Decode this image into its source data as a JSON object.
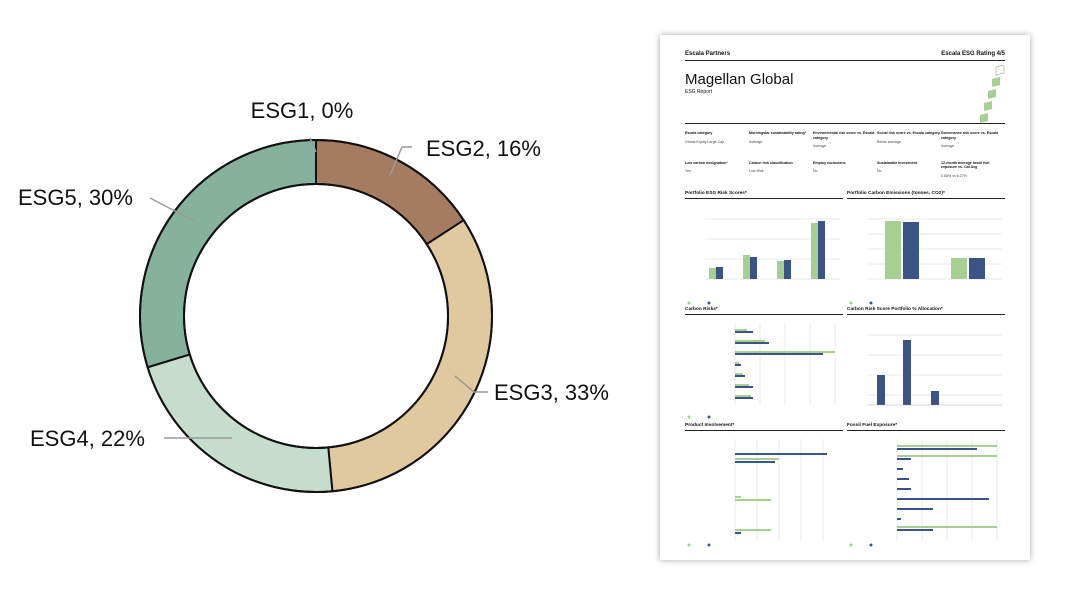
{
  "chart_data": {
    "type": "pie",
    "categories": [
      "ESG1",
      "ESG2",
      "ESG3",
      "ESG4",
      "ESG5"
    ],
    "values": [
      0,
      16,
      33,
      22,
      30
    ],
    "data_labels": [
      "ESG1, 0%",
      "ESG2, 16%",
      "ESG3, 33%",
      "ESG4, 22%",
      "ESG5, 30%"
    ],
    "colors": [
      "#6e6e6e",
      "#a57c60",
      "#e0c99e",
      "#c5ddcc",
      "#86b19c"
    ],
    "donut": true,
    "legend": "none"
  },
  "report": {
    "brand": "Escala Partners",
    "rating": "Escala ESG Rating 4/5",
    "title": "Magellan Global",
    "subtitle": "ESG Report",
    "info": [
      {
        "k": "Escala category",
        "v": "Global Equity Large Cap"
      },
      {
        "k": "Morningstar sustainability rating*",
        "v": "Average"
      },
      {
        "k": "Environmental risk score vs. Escala category",
        "v": "Average"
      },
      {
        "k": "Social risk score vs. Escala category",
        "v": "Below average"
      },
      {
        "k": "Governance risk score vs. Escala category",
        "v": "Average"
      },
      {
        "k": "Low carbon designation*",
        "v": "Yes"
      },
      {
        "k": "Carbon risk classification",
        "v": "Low Risk"
      },
      {
        "k": "Employ exclusions",
        "v": "No"
      },
      {
        "k": "Sustainable investment",
        "v": "No"
      },
      {
        "k": "12-month average fossil fuel exposure vs. Cat Avg",
        "v": "0.85% vs 6.27%"
      }
    ],
    "panels": {
      "esg_risk": "Portfolio ESG Risk Scores*",
      "carbon_emissions": "Portfolio Carbon Emissions (tonnes, CO2)*",
      "carbon_risks": "Carbon Risks*",
      "carbon_alloc": "Carbon Risk Score Portfolio % Allocation*",
      "product_inv": "Product Involvement*",
      "fossil": "Fossil Fuel Exposure*"
    }
  }
}
